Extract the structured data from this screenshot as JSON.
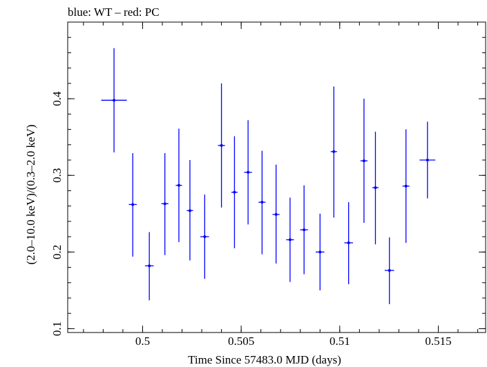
{
  "chart_data": {
    "type": "scatter",
    "title": "blue: WT – red: PC",
    "xlabel": "Time Since 57483.0 MJD (days)",
    "ylabel": "(2.0–10.0 keV)/(0.3–2.0 keV)",
    "xlim": [
      0.4962,
      0.5174
    ],
    "ylim": [
      0.095,
      0.5
    ],
    "xticks": [
      0.5,
      0.505,
      0.51,
      0.515
    ],
    "xtick_labels": [
      "0.5",
      "0.505",
      "0.51",
      "0.515"
    ],
    "yticks": [
      0.1,
      0.2,
      0.3,
      0.4
    ],
    "ytick_labels": [
      "0.1",
      "0.2",
      "0.3",
      "0.4"
    ],
    "grid": false,
    "series": [
      {
        "color": "#0000ff",
        "points": [
          {
            "x": 0.49855,
            "xerr": 0.00065,
            "y": 0.398,
            "yerr_lo": 0.068,
            "yerr_hi": 0.068
          },
          {
            "x": 0.4995,
            "xerr": 0.0002,
            "y": 0.262,
            "yerr_lo": 0.068,
            "yerr_hi": 0.067
          },
          {
            "x": 0.50034,
            "xerr": 0.00022,
            "y": 0.182,
            "yerr_lo": 0.045,
            "yerr_hi": 0.044
          },
          {
            "x": 0.50113,
            "xerr": 0.00018,
            "y": 0.263,
            "yerr_lo": 0.067,
            "yerr_hi": 0.066
          },
          {
            "x": 0.50184,
            "xerr": 0.00016,
            "y": 0.287,
            "yerr_lo": 0.074,
            "yerr_hi": 0.074
          },
          {
            "x": 0.5024,
            "xerr": 0.00016,
            "y": 0.254,
            "yerr_lo": 0.065,
            "yerr_hi": 0.066
          },
          {
            "x": 0.50315,
            "xerr": 0.00022,
            "y": 0.22,
            "yerr_lo": 0.055,
            "yerr_hi": 0.055
          },
          {
            "x": 0.504,
            "xerr": 0.00018,
            "y": 0.339,
            "yerr_lo": 0.081,
            "yerr_hi": 0.081
          },
          {
            "x": 0.50466,
            "xerr": 0.00016,
            "y": 0.278,
            "yerr_lo": 0.073,
            "yerr_hi": 0.073
          },
          {
            "x": 0.50535,
            "xerr": 0.0002,
            "y": 0.304,
            "yerr_lo": 0.068,
            "yerr_hi": 0.068
          },
          {
            "x": 0.50606,
            "xerr": 0.00018,
            "y": 0.265,
            "yerr_lo": 0.068,
            "yerr_hi": 0.067
          },
          {
            "x": 0.50677,
            "xerr": 0.00018,
            "y": 0.249,
            "yerr_lo": 0.064,
            "yerr_hi": 0.065
          },
          {
            "x": 0.50748,
            "xerr": 0.0002,
            "y": 0.216,
            "yerr_lo": 0.055,
            "yerr_hi": 0.055
          },
          {
            "x": 0.50819,
            "xerr": 0.0002,
            "y": 0.229,
            "yerr_lo": 0.058,
            "yerr_hi": 0.058
          },
          {
            "x": 0.509,
            "xerr": 0.00022,
            "y": 0.2,
            "yerr_lo": 0.05,
            "yerr_hi": 0.05
          },
          {
            "x": 0.5097,
            "xerr": 0.00016,
            "y": 0.331,
            "yerr_lo": 0.086,
            "yerr_hi": 0.085
          },
          {
            "x": 0.51045,
            "xerr": 0.00022,
            "y": 0.212,
            "yerr_lo": 0.054,
            "yerr_hi": 0.053
          },
          {
            "x": 0.51123,
            "xerr": 0.00018,
            "y": 0.319,
            "yerr_lo": 0.081,
            "yerr_hi": 0.081
          },
          {
            "x": 0.51181,
            "xerr": 0.00016,
            "y": 0.284,
            "yerr_lo": 0.074,
            "yerr_hi": 0.073
          },
          {
            "x": 0.51252,
            "xerr": 0.00024,
            "y": 0.176,
            "yerr_lo": 0.044,
            "yerr_hi": 0.043
          },
          {
            "x": 0.51336,
            "xerr": 0.00018,
            "y": 0.286,
            "yerr_lo": 0.074,
            "yerr_hi": 0.074
          },
          {
            "x": 0.51445,
            "xerr": 0.0004,
            "y": 0.32,
            "yerr_lo": 0.05,
            "yerr_hi": 0.05
          }
        ]
      }
    ]
  }
}
